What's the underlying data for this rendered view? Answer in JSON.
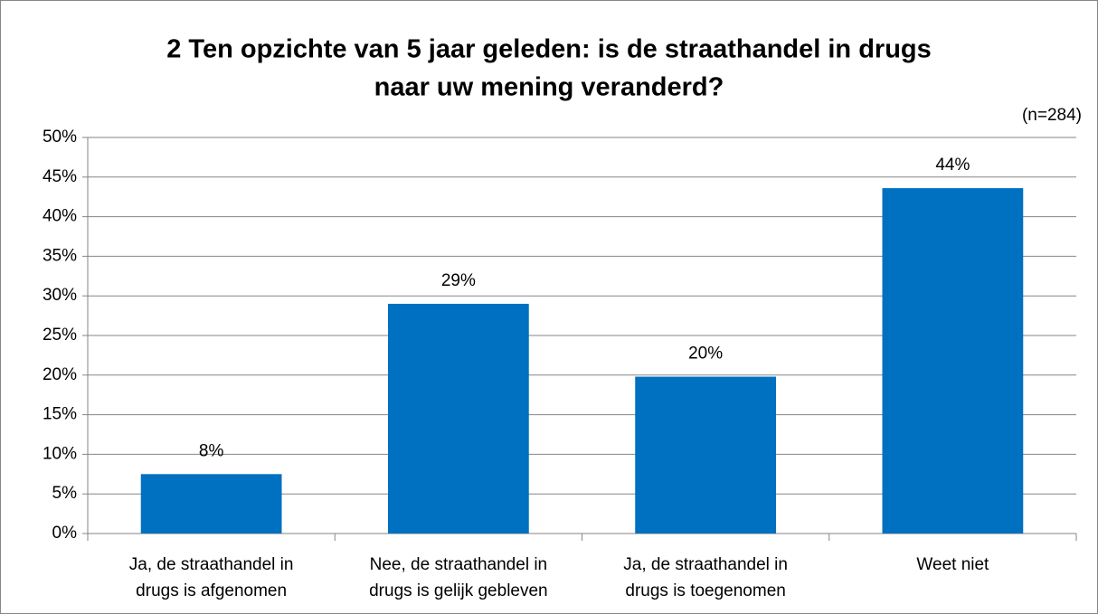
{
  "chart_data": {
    "type": "bar",
    "title": [
      "2 Ten opzichte van 5 jaar geleden: is de straathandel in drugs",
      "naar uw mening veranderd?"
    ],
    "annotation": "(n=284)",
    "categories": [
      [
        "Ja, de straathandel in",
        "drugs is afgenomen"
      ],
      [
        "Nee, de straathandel in",
        "drugs is gelijk gebleven"
      ],
      [
        "Ja, de straathandel in",
        "drugs is toegenomen"
      ],
      [
        "Weet niet"
      ]
    ],
    "values": [
      7.5,
      29,
      19.8,
      43.6
    ],
    "value_labels": [
      "8%",
      "29%",
      "20%",
      "44%"
    ],
    "color": "#0070c0",
    "ylim": [
      0,
      50
    ],
    "yticks": [
      {
        "value": 0,
        "label": "0%"
      },
      {
        "value": 5,
        "label": "5%"
      },
      {
        "value": 10,
        "label": "10%"
      },
      {
        "value": 15,
        "label": "15%"
      },
      {
        "value": 20,
        "label": "20%"
      },
      {
        "value": 25,
        "label": "25%"
      },
      {
        "value": 30,
        "label": "30%"
      },
      {
        "value": 35,
        "label": "35%"
      },
      {
        "value": 40,
        "label": "40%"
      },
      {
        "value": 45,
        "label": "45%"
      },
      {
        "value": 50,
        "label": "50%"
      }
    ],
    "grid": true
  }
}
